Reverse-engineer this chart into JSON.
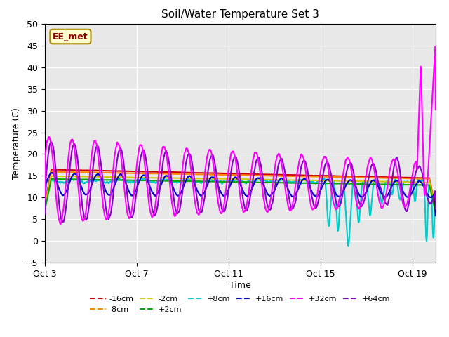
{
  "title": "Soil/Water Temperature Set 3",
  "xlabel": "Time",
  "ylabel": "Temperature (C)",
  "ylim": [
    -5,
    50
  ],
  "yticks": [
    -5,
    0,
    5,
    10,
    15,
    20,
    25,
    30,
    35,
    40,
    45,
    50
  ],
  "xlim": [
    0,
    17
  ],
  "xticks": [
    0,
    4,
    8,
    12,
    16
  ],
  "xticklabels": [
    "Oct 3",
    "Oct 7",
    "Oct 11",
    "Oct 15",
    "Oct 19"
  ],
  "background_color": "#e8e8e8",
  "legend_label": "EE_met",
  "series": {
    "-16cm": {
      "color": "#cc0000",
      "lw": 1.5
    },
    "-8cm": {
      "color": "#ff8800",
      "lw": 1.5
    },
    "-2cm": {
      "color": "#cccc00",
      "lw": 1.5
    },
    "+2cm": {
      "color": "#00aa00",
      "lw": 1.5
    },
    "+8cm": {
      "color": "#00cccc",
      "lw": 1.5
    },
    "+16cm": {
      "color": "#0000cc",
      "lw": 1.5
    },
    "+32cm": {
      "color": "#ff00ff",
      "lw": 1.5
    },
    "+64cm": {
      "color": "#8800cc",
      "lw": 1.5
    }
  }
}
